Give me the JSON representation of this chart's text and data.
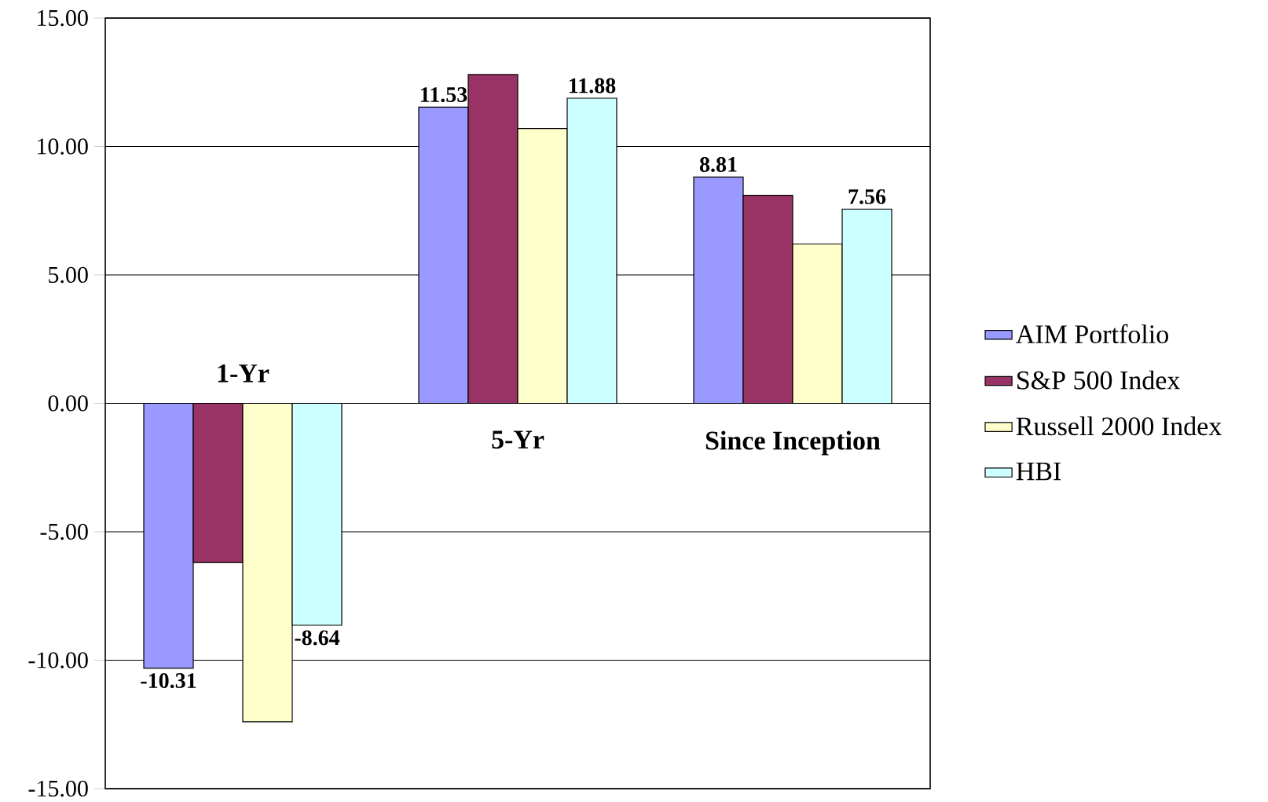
{
  "chart_data": {
    "type": "bar",
    "categories": [
      "1-Yr",
      "5-Yr",
      "Since Inception"
    ],
    "series": [
      {
        "name": "AIM Portfolio",
        "color": "#9999ff",
        "values": [
          -10.31,
          11.53,
          8.81
        ],
        "value_labels": [
          "-10.31",
          "11.53",
          "8.81"
        ]
      },
      {
        "name": "S&P 500 Index",
        "color": "#993366",
        "values": [
          -6.2,
          12.8,
          8.1
        ]
      },
      {
        "name": "Russell 2000 Index",
        "color": "#ffffcc",
        "values": [
          -12.4,
          10.7,
          6.2
        ]
      },
      {
        "name": "HBI",
        "color": "#ccffff",
        "values": [
          -8.64,
          11.88,
          7.56
        ],
        "value_labels": [
          "-8.64",
          "11.88",
          "7.56"
        ]
      }
    ],
    "ylim": [
      -15,
      15
    ],
    "yticks": [
      {
        "value": -15,
        "label": "-15.00"
      },
      {
        "value": -10,
        "label": "-10.00"
      },
      {
        "value": -5,
        "label": "-5.00"
      },
      {
        "value": 0,
        "label": "0.00"
      },
      {
        "value": 5,
        "label": "5.00"
      },
      {
        "value": 10,
        "label": "10.00"
      },
      {
        "value": 15,
        "label": "15.00"
      }
    ],
    "grid": "y",
    "legend": "right"
  }
}
